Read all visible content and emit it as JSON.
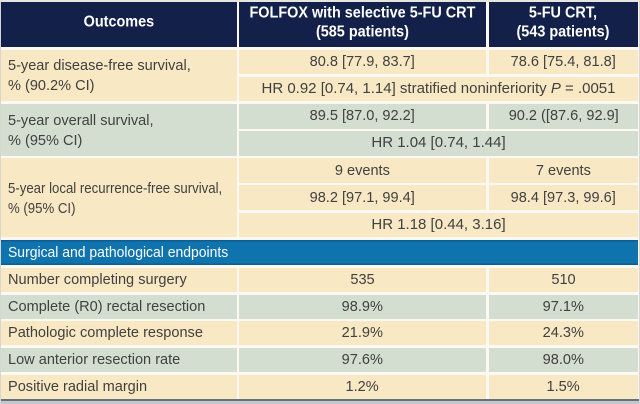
{
  "header": {
    "outcomes": "Outcomes",
    "folfox_line1": "FOLFOX with selective 5-FU CRT",
    "folfox_line2": "(585 patients)",
    "fu_line1": "5-FU CRT,",
    "fu_line2": "(543 patients)"
  },
  "dfs": {
    "label_line1": "5-year disease-free survival,",
    "label_line2": "% (90.2% CI)",
    "folfox": "80.8 [77.9, 83.7]",
    "fu": "78.6 [75.4, 81.8]",
    "hr_prefix": "HR 0.92 [0.74, 1.14] stratified noninferiority ",
    "hr_p": "P",
    "hr_suffix": " = .0051"
  },
  "os": {
    "label_line1": "5-year overall survival,",
    "label_line2": "% (95% CI)",
    "folfox": "89.5 [87.0, 92.2]",
    "fu": "90.2 ([87.6, 92.9]",
    "hr": "HR 1.04 [0.74, 1.44]"
  },
  "lrfs": {
    "label_line1": "5-year local recurrence-free survival,",
    "label_line2": "% (95% CI)",
    "events_folfox": "9 events",
    "events_fu": "7 events",
    "folfox": "98.2 [97.1, 99.4]",
    "fu": "98.4 [97.3, 99.6]",
    "hr": "HR 1.18 [0.44, 3.16]"
  },
  "section_title": "Surgical and pathological endpoints",
  "surgical_rows": [
    {
      "label": "Number completing surgery",
      "folfox": "535",
      "fu": "510"
    },
    {
      "label": "Complete (R0) rectal resection",
      "folfox": "98.9%",
      "fu": "97.1%"
    },
    {
      "label": "Pathologic complete response",
      "folfox": "21.9%",
      "fu": "24.3%"
    },
    {
      "label": "Low anterior resection rate",
      "folfox": "97.6%",
      "fu": "98.0%"
    },
    {
      "label": "Positive radial margin",
      "folfox": "1.2%",
      "fu": "1.5%"
    }
  ],
  "colors": {
    "header_navy": "#13204a",
    "row_cream": "#f8e8c3",
    "row_green": "#d3ddd0",
    "section_blue": "#0f73ae",
    "text": "#414141"
  }
}
